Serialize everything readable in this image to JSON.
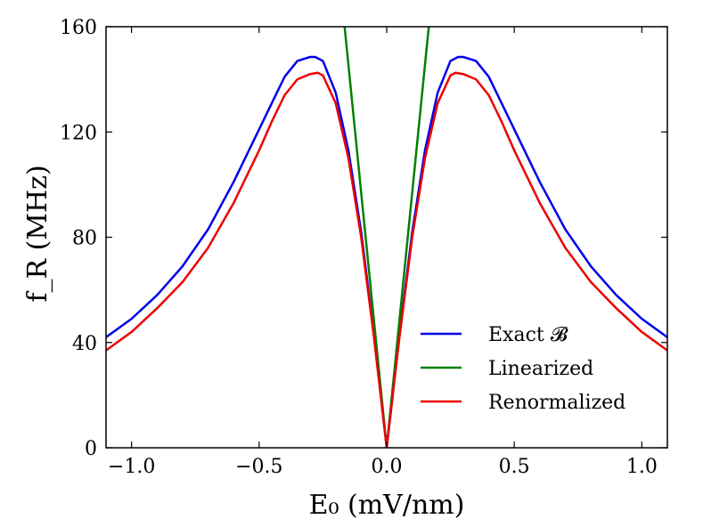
{
  "chart_data": {
    "type": "line",
    "xlabel": "E₀ (mV/nm)",
    "ylabel": "f_R (MHz)",
    "xlim": [
      -1.1,
      1.1
    ],
    "ylim": [
      0,
      160
    ],
    "xticks": [
      -1.0,
      -0.5,
      0.0,
      0.5,
      1.0
    ],
    "xtick_labels": [
      "−1.0",
      "−0.5",
      "0.0",
      "0.5",
      "1.0"
    ],
    "yticks": [
      0,
      40,
      80,
      120,
      160
    ],
    "ytick_labels": [
      "0",
      "40",
      "80",
      "120",
      "160"
    ],
    "grid": false,
    "legend_position": "lower-right",
    "series": [
      {
        "name": "Exact 𝓑",
        "color": "#0000ee",
        "x": [
          -1.1,
          -1.0,
          -0.9,
          -0.8,
          -0.7,
          -0.6,
          -0.5,
          -0.45,
          -0.4,
          -0.35,
          -0.3,
          -0.28,
          -0.25,
          -0.2,
          -0.15,
          -0.1,
          -0.05,
          0.0,
          0.05,
          0.1,
          0.15,
          0.2,
          0.25,
          0.28,
          0.3,
          0.35,
          0.4,
          0.45,
          0.5,
          0.6,
          0.7,
          0.8,
          0.9,
          1.0,
          1.1
        ],
        "y": [
          42,
          49,
          58,
          69,
          83,
          101,
          121,
          131,
          141,
          147,
          148.5,
          148.5,
          147,
          135,
          113,
          82,
          43,
          0,
          43,
          82,
          113,
          135,
          147,
          148.5,
          148.5,
          147,
          141,
          131,
          121,
          101,
          83,
          69,
          58,
          49,
          42
        ]
      },
      {
        "name": "Linearized",
        "color": "#008000",
        "x": [
          -0.165,
          0.0,
          0.165
        ],
        "y": [
          160,
          0,
          160
        ]
      },
      {
        "name": "Renormalized",
        "color": "#ee0000",
        "x": [
          -1.1,
          -1.0,
          -0.9,
          -0.8,
          -0.7,
          -0.6,
          -0.5,
          -0.45,
          -0.4,
          -0.35,
          -0.3,
          -0.27,
          -0.25,
          -0.2,
          -0.15,
          -0.1,
          -0.05,
          0.0,
          0.05,
          0.1,
          0.15,
          0.2,
          0.25,
          0.27,
          0.3,
          0.35,
          0.4,
          0.45,
          0.5,
          0.6,
          0.7,
          0.8,
          0.9,
          1.0,
          1.1
        ],
        "y": [
          37,
          44,
          53,
          63,
          76,
          93,
          113,
          124,
          134,
          140,
          142,
          142.5,
          141.5,
          131,
          110,
          80,
          42,
          0,
          42,
          80,
          110,
          131,
          141.5,
          142.5,
          142,
          140,
          134,
          124,
          113,
          93,
          76,
          63,
          53,
          44,
          37
        ]
      }
    ]
  }
}
